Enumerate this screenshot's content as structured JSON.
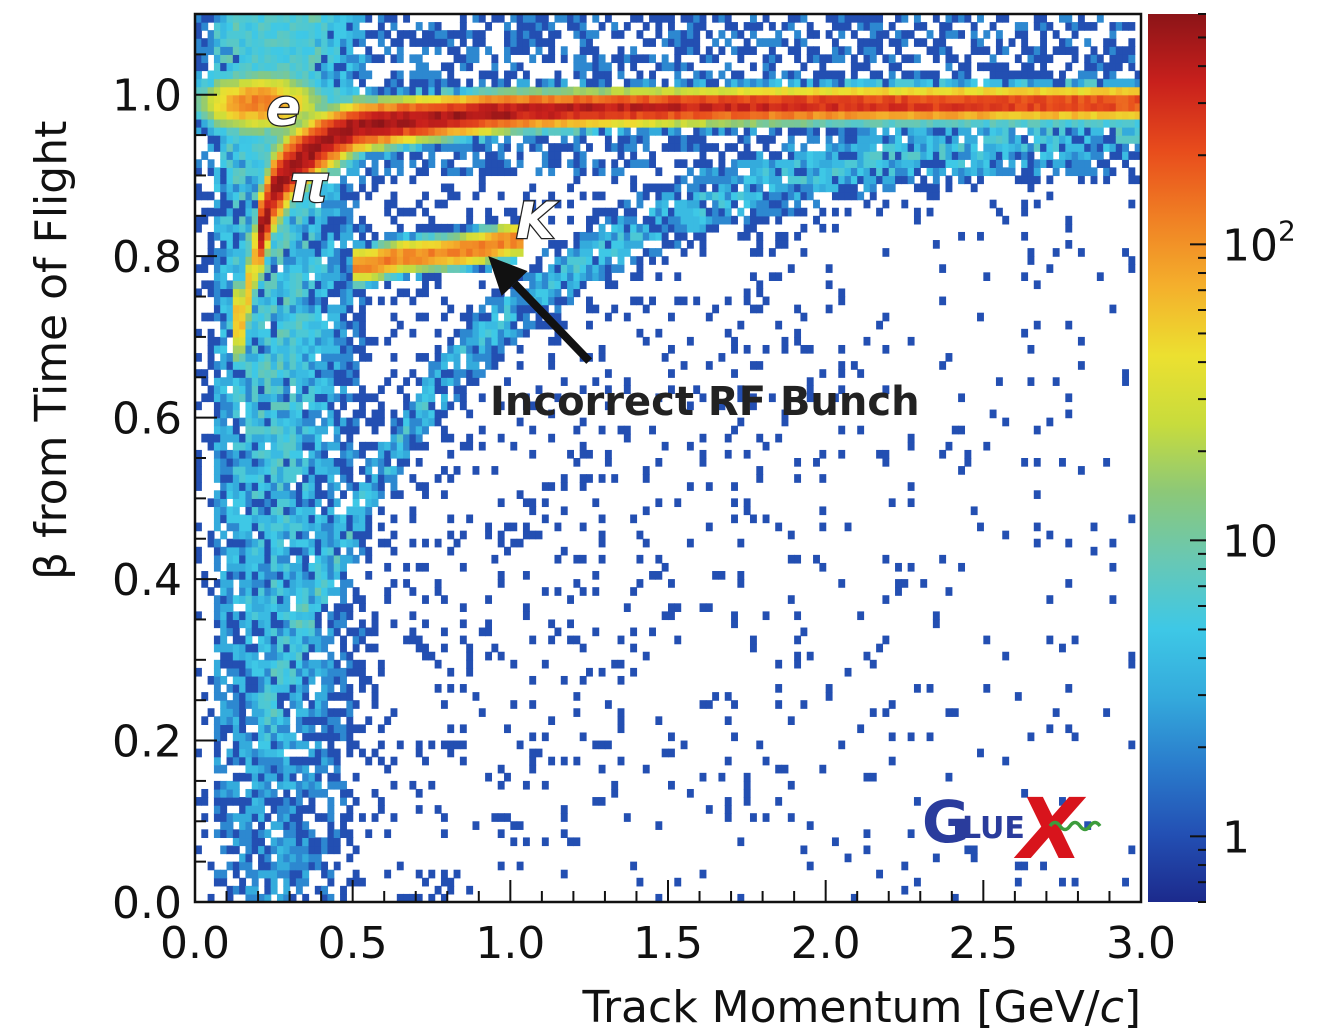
{
  "chart_data": {
    "type": "heatmap",
    "title": "",
    "xlabel": "Track Momentum [GeV/c]",
    "xlabel_main": "Track Momentum [GeV/",
    "xlabel_unit_italic": "c",
    "xlabel_close": "]",
    "ylabel": "β from Time of Flight",
    "xlim": [
      0.0,
      3.0
    ],
    "ylim": [
      0.0,
      1.1
    ],
    "x_ticks": [
      "0.0",
      "0.5",
      "1.0",
      "1.5",
      "2.0",
      "2.5",
      "3.0"
    ],
    "x_tick_values": [
      0.0,
      0.5,
      1.0,
      1.5,
      2.0,
      2.5,
      3.0
    ],
    "y_ticks": [
      "0.0",
      "0.2",
      "0.4",
      "0.6",
      "0.8",
      "1.0"
    ],
    "y_tick_values": [
      0.0,
      0.2,
      0.4,
      0.6,
      0.8,
      1.0
    ],
    "z_scale": "log",
    "colorbar": {
      "range": [
        0.6,
        600
      ],
      "labels": [
        {
          "text": "1",
          "value": 1
        },
        {
          "text": "10",
          "value": 10
        },
        {
          "text": "10",
          "sup": "2",
          "value": 100
        }
      ],
      "colors": [
        "#1c2a8c",
        "#2350b4",
        "#2a7ccc",
        "#34aadc",
        "#3ec8e6",
        "#68c8b4",
        "#8cc878",
        "#c8dc3c",
        "#ece030",
        "#f4b02c",
        "#f08024",
        "#e84c1c",
        "#c8201c",
        "#8c1418"
      ]
    },
    "bands": [
      {
        "name": "e",
        "description_points": [
          [
            0.05,
            0.985
          ],
          [
            0.15,
            0.99
          ],
          [
            0.25,
            0.99
          ]
        ]
      },
      {
        "name": "π",
        "points": [
          [
            0.15,
            0.72
          ],
          [
            0.2,
            0.82
          ],
          [
            0.25,
            0.88
          ],
          [
            0.3,
            0.91
          ],
          [
            0.4,
            0.94
          ],
          [
            0.5,
            0.96
          ],
          [
            0.7,
            0.97
          ],
          [
            1.0,
            0.98
          ],
          [
            1.5,
            0.985
          ],
          [
            2.0,
            0.988
          ],
          [
            3.0,
            0.99
          ]
        ]
      },
      {
        "name": "K",
        "points": [
          [
            0.55,
            0.79
          ],
          [
            0.65,
            0.8
          ],
          [
            0.8,
            0.805
          ],
          [
            0.9,
            0.81
          ],
          [
            1.0,
            0.82
          ]
        ]
      }
    ],
    "annotations": [
      {
        "text": "e",
        "x": 0.28,
        "y": 0.985
      },
      {
        "text": "π",
        "x": 0.36,
        "y": 0.89
      },
      {
        "text": "K",
        "x": 1.08,
        "y": 0.845
      },
      {
        "text": "Incorrect RF Bunch",
        "x": 0.93,
        "y": 0.8,
        "arrow_from": [
          1.25,
          0.67
        ]
      }
    ]
  },
  "logo": {
    "name": "GlueX",
    "letters": [
      "G",
      "LUE",
      "X"
    ],
    "colors": {
      "blue": "#2a3c9c",
      "red": "#d8141c",
      "green": "#3c9c3c"
    }
  }
}
